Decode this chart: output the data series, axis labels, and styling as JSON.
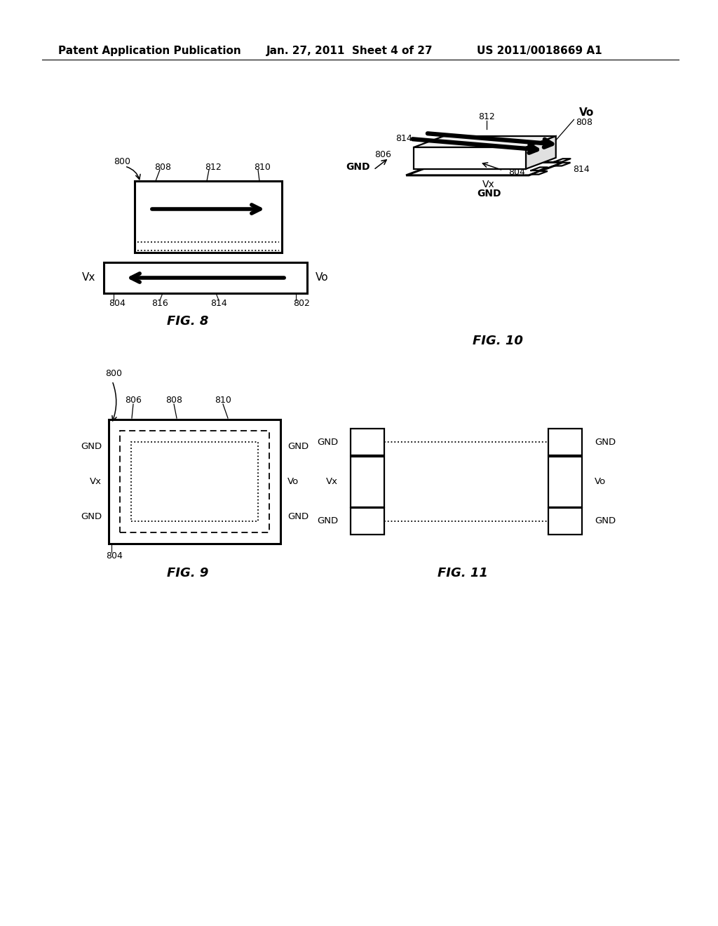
{
  "bg_color": "#ffffff",
  "header_left": "Patent Application Publication",
  "header_mid": "Jan. 27, 2011  Sheet 4 of 27",
  "header_right": "US 2011/0018669 A1",
  "header_fontsize": 11,
  "fig8_caption": "FIG. 8",
  "fig9_caption": "FIG. 9",
  "fig10_caption": "FIG. 10",
  "fig11_caption": "FIG. 11",
  "note_fontsize": 9,
  "label_fontsize": 10,
  "caption_fontsize": 13
}
